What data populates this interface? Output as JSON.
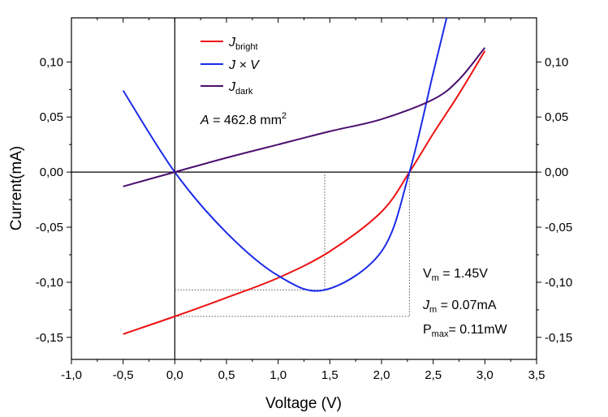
{
  "chart_data": {
    "type": "line",
    "xlabel": "Voltage (V)",
    "ylabel": "Current(mA)",
    "xlim": [
      -1.0,
      3.5
    ],
    "ylim": [
      -0.17,
      0.14
    ],
    "x_ticks": [
      "-1,0",
      "-0,5",
      "0,0",
      "0,5",
      "1,0",
      "1,5",
      "2,0",
      "2,5",
      "3,0",
      "3,5"
    ],
    "y_ticks": [
      "0,10",
      "0,05",
      "0,00",
      "-0,05",
      "-0,10",
      "-0,15"
    ],
    "y_right_ticks": [
      "0,10",
      "0,05",
      "0,00",
      "-0,05",
      "-0,10",
      "-0,15"
    ],
    "legend_position": "top-left",
    "series": [
      {
        "name": "J",
        "name_sub": "bright",
        "color": "#ee1111",
        "x": [
          -0.5,
          0.0,
          0.5,
          1.0,
          1.5,
          2.0,
          2.27,
          2.5,
          2.75,
          3.0
        ],
        "y": [
          -0.147,
          -0.131,
          -0.114,
          -0.096,
          -0.072,
          -0.036,
          0.0,
          0.035,
          0.071,
          0.11
        ]
      },
      {
        "name": "J × V",
        "color": "#1a2be8",
        "x": [
          -0.5,
          0.0,
          0.5,
          1.0,
          1.45,
          2.0,
          2.27,
          2.5,
          2.63
        ],
        "y": [
          0.074,
          0.0,
          -0.055,
          -0.094,
          -0.107,
          -0.072,
          0.0,
          0.09,
          0.14
        ]
      },
      {
        "name": "J",
        "name_sub": "dark",
        "color": "#4b0e6e",
        "x": [
          -0.5,
          0.0,
          0.5,
          1.0,
          1.5,
          2.0,
          2.5,
          2.75,
          3.0
        ],
        "y": [
          -0.013,
          0.0,
          0.013,
          0.025,
          0.037,
          0.048,
          0.066,
          0.084,
          0.113
        ]
      }
    ],
    "guide_lines": [
      {
        "x": [
          0.0,
          1.45,
          1.45
        ],
        "y": [
          -0.107,
          -0.107,
          0.0
        ]
      },
      {
        "x": [
          0.0,
          2.27,
          2.27
        ],
        "y": [
          -0.131,
          -0.131,
          0.0
        ]
      }
    ],
    "annotations": {
      "area": {
        "var": "A",
        "text": " = 462.8 mm",
        "sup": "2"
      },
      "vm": {
        "var": "V",
        "sub": "m",
        "text": " = 1.45V"
      },
      "jm": {
        "var": "J",
        "sub": "m",
        "text": " = 0.07mA"
      },
      "pmax": {
        "var": "P",
        "sub": "max",
        "text": "= 0.11mW"
      }
    }
  }
}
